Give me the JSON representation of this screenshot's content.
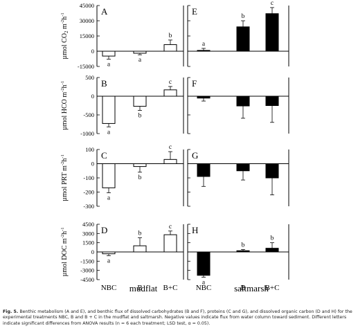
{
  "chart_data": [
    {
      "type": "bar",
      "panel": "A",
      "habitat": "mudflat",
      "ylabel_prefix": "µmol CO",
      "ylabel_sub": "2",
      "yticks": [
        45000,
        30000,
        15000,
        0,
        -15000
      ],
      "ylim": [
        -15000,
        45000
      ],
      "categories": [
        "NBC",
        "B",
        "B+C"
      ],
      "values": [
        -4800,
        -2000,
        6500
      ],
      "errors": [
        3000,
        1500,
        4500
      ],
      "letters": [
        "a",
        "a",
        "b"
      ],
      "fill": "#ffffff"
    },
    {
      "type": "bar",
      "panel": "E",
      "habitat": "saltmarsh",
      "ylabel_prefix": "",
      "ylabel_sub": "",
      "yticks": [],
      "ylim": [
        -15000,
        45000
      ],
      "categories": [
        "NBC",
        "B",
        "B+C"
      ],
      "values": [
        800,
        24000,
        37000
      ],
      "errors": [
        2000,
        6000,
        6000
      ],
      "letters": [
        "a",
        "b",
        "c"
      ],
      "fill": "#000000"
    },
    {
      "type": "bar",
      "panel": "B",
      "habitat": "mudflat",
      "ylabel_prefix": "µmol HCO",
      "ylabel_sub": "",
      "yticks": [
        500,
        0,
        -500,
        -1000
      ],
      "ylim": [
        -1000,
        500
      ],
      "categories": [
        "NBC",
        "B",
        "B+C"
      ],
      "values": [
        -730,
        -270,
        170
      ],
      "errors": [
        90,
        110,
        90
      ],
      "letters": [
        "a",
        "b",
        "c"
      ],
      "fill": "#ffffff"
    },
    {
      "type": "bar",
      "panel": "F",
      "habitat": "saltmarsh",
      "ylabel_prefix": "",
      "ylabel_sub": "",
      "yticks": [],
      "ylim": [
        -1000,
        500
      ],
      "categories": [
        "NBC",
        "B",
        "B+C"
      ],
      "values": [
        -50,
        -260,
        -250
      ],
      "errors": [
        80,
        330,
        450
      ],
      "letters": [
        "",
        "",
        ""
      ],
      "fill": "#000000"
    },
    {
      "type": "bar",
      "panel": "C",
      "habitat": "mudflat",
      "ylabel_prefix": "µmol PRT",
      "ylabel_sub": "",
      "yticks": [
        100,
        0,
        -100,
        -200,
        -300
      ],
      "ylim": [
        -300,
        100
      ],
      "categories": [
        "NBC",
        "B",
        "B+C"
      ],
      "values": [
        -170,
        -20,
        30
      ],
      "errors": [
        35,
        40,
        55
      ],
      "letters": [
        "a",
        "b",
        "c"
      ],
      "fill": "#ffffff"
    },
    {
      "type": "bar",
      "panel": "G",
      "habitat": "saltmarsh",
      "ylabel_prefix": "",
      "ylabel_sub": "",
      "yticks": [],
      "ylim": [
        -300,
        100
      ],
      "categories": [
        "NBC",
        "B",
        "B+C"
      ],
      "values": [
        -90,
        -50,
        -100
      ],
      "errors": [
        70,
        65,
        120
      ],
      "letters": [
        "",
        "",
        ""
      ],
      "fill": "#000000"
    },
    {
      "type": "bar",
      "panel": "D",
      "habitat": "mudflat",
      "ylabel_prefix": "µmol DOC",
      "ylabel_sub": "",
      "yticks": [
        4500,
        3000,
        1500,
        0,
        -1500,
        -3000,
        -4500
      ],
      "ylim": [
        -4500,
        4500
      ],
      "categories": [
        "NBC",
        "B",
        "B+C"
      ],
      "values": [
        -300,
        1000,
        2800
      ],
      "errors": [
        300,
        1300,
        600
      ],
      "letters": [
        "a",
        "b",
        "c"
      ],
      "fill": "#ffffff"
    },
    {
      "type": "bar",
      "panel": "H",
      "habitat": "saltmarsh",
      "ylabel_prefix": "",
      "ylabel_sub": "",
      "yticks": [],
      "ylim": [
        -4500,
        4500
      ],
      "categories": [
        "NBC",
        "B",
        "B+C"
      ],
      "values": [
        -3800,
        200,
        600
      ],
      "errors": [
        300,
        200,
        900
      ],
      "letters": [
        "a",
        "b",
        "b"
      ],
      "fill": "#000000"
    }
  ],
  "habitat_labels": [
    "mudflat",
    "saltmarsh"
  ],
  "unit_suffix": "m",
  "unit_exp_m": "-2",
  "unit_h": "h",
  "unit_exp_h": "-1",
  "caption": {
    "label": "Fig. 5.",
    "text": "Benthic metabolism (A and E), and benthic flux of dissolved carbohydrates (B and F), proteins (C and G), and dissolved organic carbon (D and H) for the experimental treatments NBC, B and B + C in the mudflat and saltmarsh. Negative values indicate flux from water column toward sediment. Different letters indicate significant differences from ANOVA results (n = 6 each treatment; LSD test, α = 0.05)."
  }
}
